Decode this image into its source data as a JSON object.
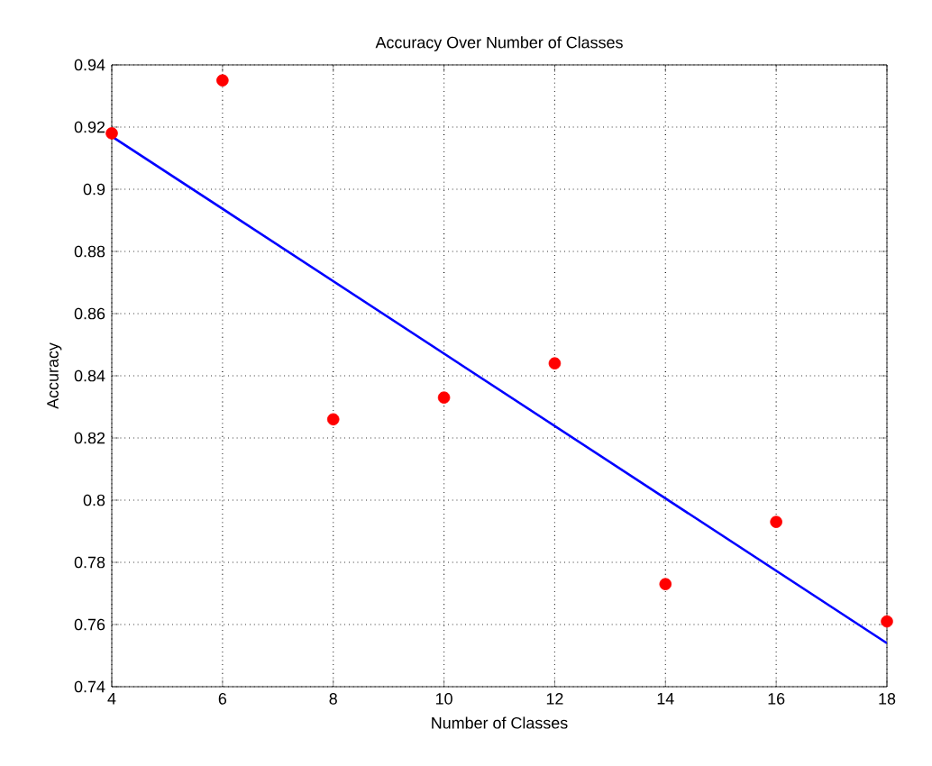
{
  "chart_data": {
    "type": "scatter",
    "title": "Accuracy Over Number of Classes",
    "xlabel": "Number of Classes",
    "ylabel": "Accuracy",
    "xlim": [
      4,
      18
    ],
    "xticks": [
      4,
      6,
      8,
      10,
      12,
      14,
      16,
      18
    ],
    "ylim": [
      0.74,
      0.94
    ],
    "yticks": [
      0.74,
      0.76,
      0.78,
      0.8,
      0.82,
      0.84,
      0.86,
      0.88,
      0.9,
      0.92,
      0.94
    ],
    "grid": true,
    "series": [
      {
        "color": "#ff0000",
        "marker": "circle",
        "x": [
          4,
          6,
          8,
          10,
          12,
          14,
          16,
          18
        ],
        "values": [
          0.918,
          0.935,
          0.826,
          0.833,
          0.844,
          0.773,
          0.793,
          0.761
        ]
      },
      {
        "type": "line",
        "color": "#0000ff",
        "line_style": "solid",
        "marker": "none",
        "x": [
          4,
          18
        ],
        "values": [
          0.917,
          0.754
        ]
      }
    ]
  }
}
